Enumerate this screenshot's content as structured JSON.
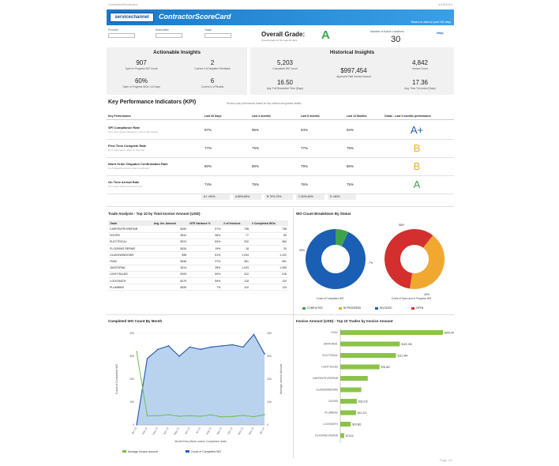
{
  "meta": {
    "doc_title": "ContractorScorecard",
    "date": "4/10/2014",
    "page": "Page 1/1"
  },
  "banner": {
    "logo_text": "servicechannel",
    "title": "ContractorScoreCard",
    "note": "Based on data for past 180 days"
  },
  "fields": [
    {
      "label": "Provider"
    },
    {
      "label": "Subscriber"
    },
    {
      "label": "Trade"
    }
  ],
  "grade": {
    "label": "Overall Grade:",
    "sub": "Overall grade for the past 90 days",
    "value": "A"
  },
  "ncl": {
    "label": "Number of Active Locations",
    "value": "30",
    "help": "Help"
  },
  "actionable": {
    "title": "Actionable Insights",
    "metrics": [
      {
        "value": "907",
        "label": "Open In Progress WO Count"
      },
      {
        "value": "2",
        "label": "Current # of Negative Feedback"
      },
      {
        "value": "60%",
        "label": "Open In Progress WOs >14 Days"
      },
      {
        "value": "6",
        "label": "Current # of Recalls"
      }
    ]
  },
  "historical": {
    "title": "Historical Insights",
    "metrics": [
      {
        "value": "5,203",
        "label": "Completed WO Count"
      },
      {
        "value": "$997,454",
        "label": "Approved Paid Invoice Amount"
      },
      {
        "value": "4,842",
        "label": "Invoice Count"
      },
      {
        "value": "16.50",
        "label": "Avg. Full Resolution Time (Days)"
      },
      {
        "value": "17.36",
        "label": "Avg. Time To Invoice (Days)"
      }
    ]
  },
  "kpi": {
    "title": "Key Performance Indicators (KPI)",
    "desc": "Review your performance based on key metrics and graded details",
    "headers": [
      "Key Performance",
      "Last 30 Days",
      "Last 3 months",
      "Last 6 months",
      "Last 12 Months",
      "Grade - Last 3 months performance"
    ],
    "rows": [
      {
        "name": "SPI Compliance Rate",
        "sub": "% of work orders checked in with mobile device",
        "values": [
          "97%",
          "95%",
          "94%",
          "94%"
        ],
        "grade": "A+",
        "color": "#1a5fb4"
      },
      {
        "name": "First Time Complete Rate",
        "sub": "% of work orders done on first visit",
        "values": [
          "77%",
          "75%",
          "77%",
          "75%"
        ],
        "grade": "B",
        "color": "#f0a830"
      },
      {
        "name": "Work Order Dispatch Confirmation Rate",
        "sub": "% of dispatched work orders confirmed",
        "values": [
          "80%",
          "80%",
          "79%",
          "80%"
        ],
        "grade": "B",
        "color": "#f0a830"
      },
      {
        "name": "On Time Arrival Rate",
        "sub": "% of work orders arrived on time",
        "values": [
          "74%",
          "75%",
          "76%",
          "75%"
        ],
        "grade": "A",
        "color": "#3fa34d"
      }
    ],
    "legend": [
      "A+ >90%",
      "A 80%-89%",
      "B 70%-79%",
      "C 60%-69%",
      "D <60%"
    ]
  },
  "trade_analysis": {
    "title": "Trade Analysis - Top 10 by Total Invoice Amount (USD)",
    "headers": [
      "Trade",
      "Avg. Inv. Amount",
      "NTE Variance %",
      "# of Invoices",
      "# Completed WOs"
    ],
    "rows": [
      [
        "CARPENTRY/REPAIR",
        "$290",
        "57%",
        "738",
        "738"
      ],
      [
        "DOORS",
        "$411",
        "36%",
        "77",
        "83"
      ],
      [
        "ELECTRICAL",
        "$374",
        "53%",
        "320",
        "360"
      ],
      [
        "FLOORING REPAIR",
        "$434",
        "19%",
        "18",
        "20"
      ],
      [
        "GLASS/WINDOWS",
        "$38",
        "51%",
        "1,034",
        "1,222"
      ],
      [
        "HVAC",
        "$446",
        "37%",
        "461",
        "481"
      ],
      [
        "JANITORIAL",
        "$114",
        "35%",
        "1,043",
        "1,050"
      ],
      [
        "LIGHT BULBS",
        "$193",
        "50%",
        "412",
        "418"
      ],
      [
        "LOCKSMITH",
        "$179",
        "59%",
        "118",
        "120"
      ],
      [
        "PLUMBING",
        "$430",
        "7%",
        "110",
        "113"
      ]
    ]
  },
  "donut": {
    "title": "WO Count Breakdown By Status",
    "left": {
      "caption": "Count of Completed WO",
      "values": [
        93,
        7
      ],
      "labels": [
        "93%",
        "7%"
      ]
    },
    "right": {
      "caption": "Count of Open and In Progress WO",
      "values": [
        58,
        42
      ],
      "labels": [
        "58%",
        "42%"
      ]
    },
    "legend": [
      "COMPLETED",
      "IN PROGRESS",
      "INVOICED",
      "OPEN"
    ],
    "colors": [
      "#3fa34d",
      "#f0a830",
      "#1a5fb4",
      "#d32f2f"
    ]
  },
  "chart_data": [
    {
      "type": "line",
      "title": "Completed WO Count By Month",
      "xlabel": "Month/Year (Work orders Completed date)",
      "ylabel": "Count of Completed WO",
      "y2label": "Average Invoice Amount",
      "x": [
        "Jan 13",
        "Feb 13",
        "Mar 13",
        "Apr 13",
        "May 13",
        "Jun 13",
        "Jul 13",
        "Aug 13",
        "Sep 13",
        "Oct 13",
        "Nov 13",
        "Dec 13",
        "Jan 14"
      ],
      "series": [
        {
          "name": "Average Invoice Amount",
          "values": [
            320,
            40,
            40,
            45,
            38,
            40,
            38,
            44,
            35,
            37,
            42,
            36,
            45
          ],
          "color": "#6fbf44"
        },
        {
          "name": "Count of Completed WO",
          "values": [
            0,
            290,
            330,
            345,
            300,
            340,
            330,
            340,
            345,
            350,
            340,
            395,
            310
          ],
          "color": "#2f5fb4"
        }
      ],
      "ylim": [
        0,
        400
      ],
      "ticks": [
        "0",
        "100",
        "200",
        "300",
        "400"
      ],
      "legend": [
        "Average Invoice Amount",
        "Count of Completed WO"
      ]
    },
    {
      "type": "bar",
      "title": "Invoice Amount (USD) - Top 10 Trades by Invoice Amount",
      "categories": [
        "HVAC",
        "JANITORIAL",
        "ELECTRICAL",
        "LIGHT BULBS",
        "CARPENTRY/REPAIR",
        "GLASS/WINDOWS",
        "DOORS",
        "PLUMBING",
        "LOCKSMITH",
        "FLOORING REPAIR"
      ],
      "values": [
        205443,
        119196,
        111464,
        78467,
        55000,
        42000,
        33215,
        31473,
        20961,
        7812
      ],
      "labels": [
        "$205,443",
        "$119,196",
        "$111,464",
        "$78,467",
        "",
        "",
        "$33,215",
        "$31,473",
        "$20,961",
        "$7,812"
      ],
      "color": "#8bc34a"
    }
  ]
}
